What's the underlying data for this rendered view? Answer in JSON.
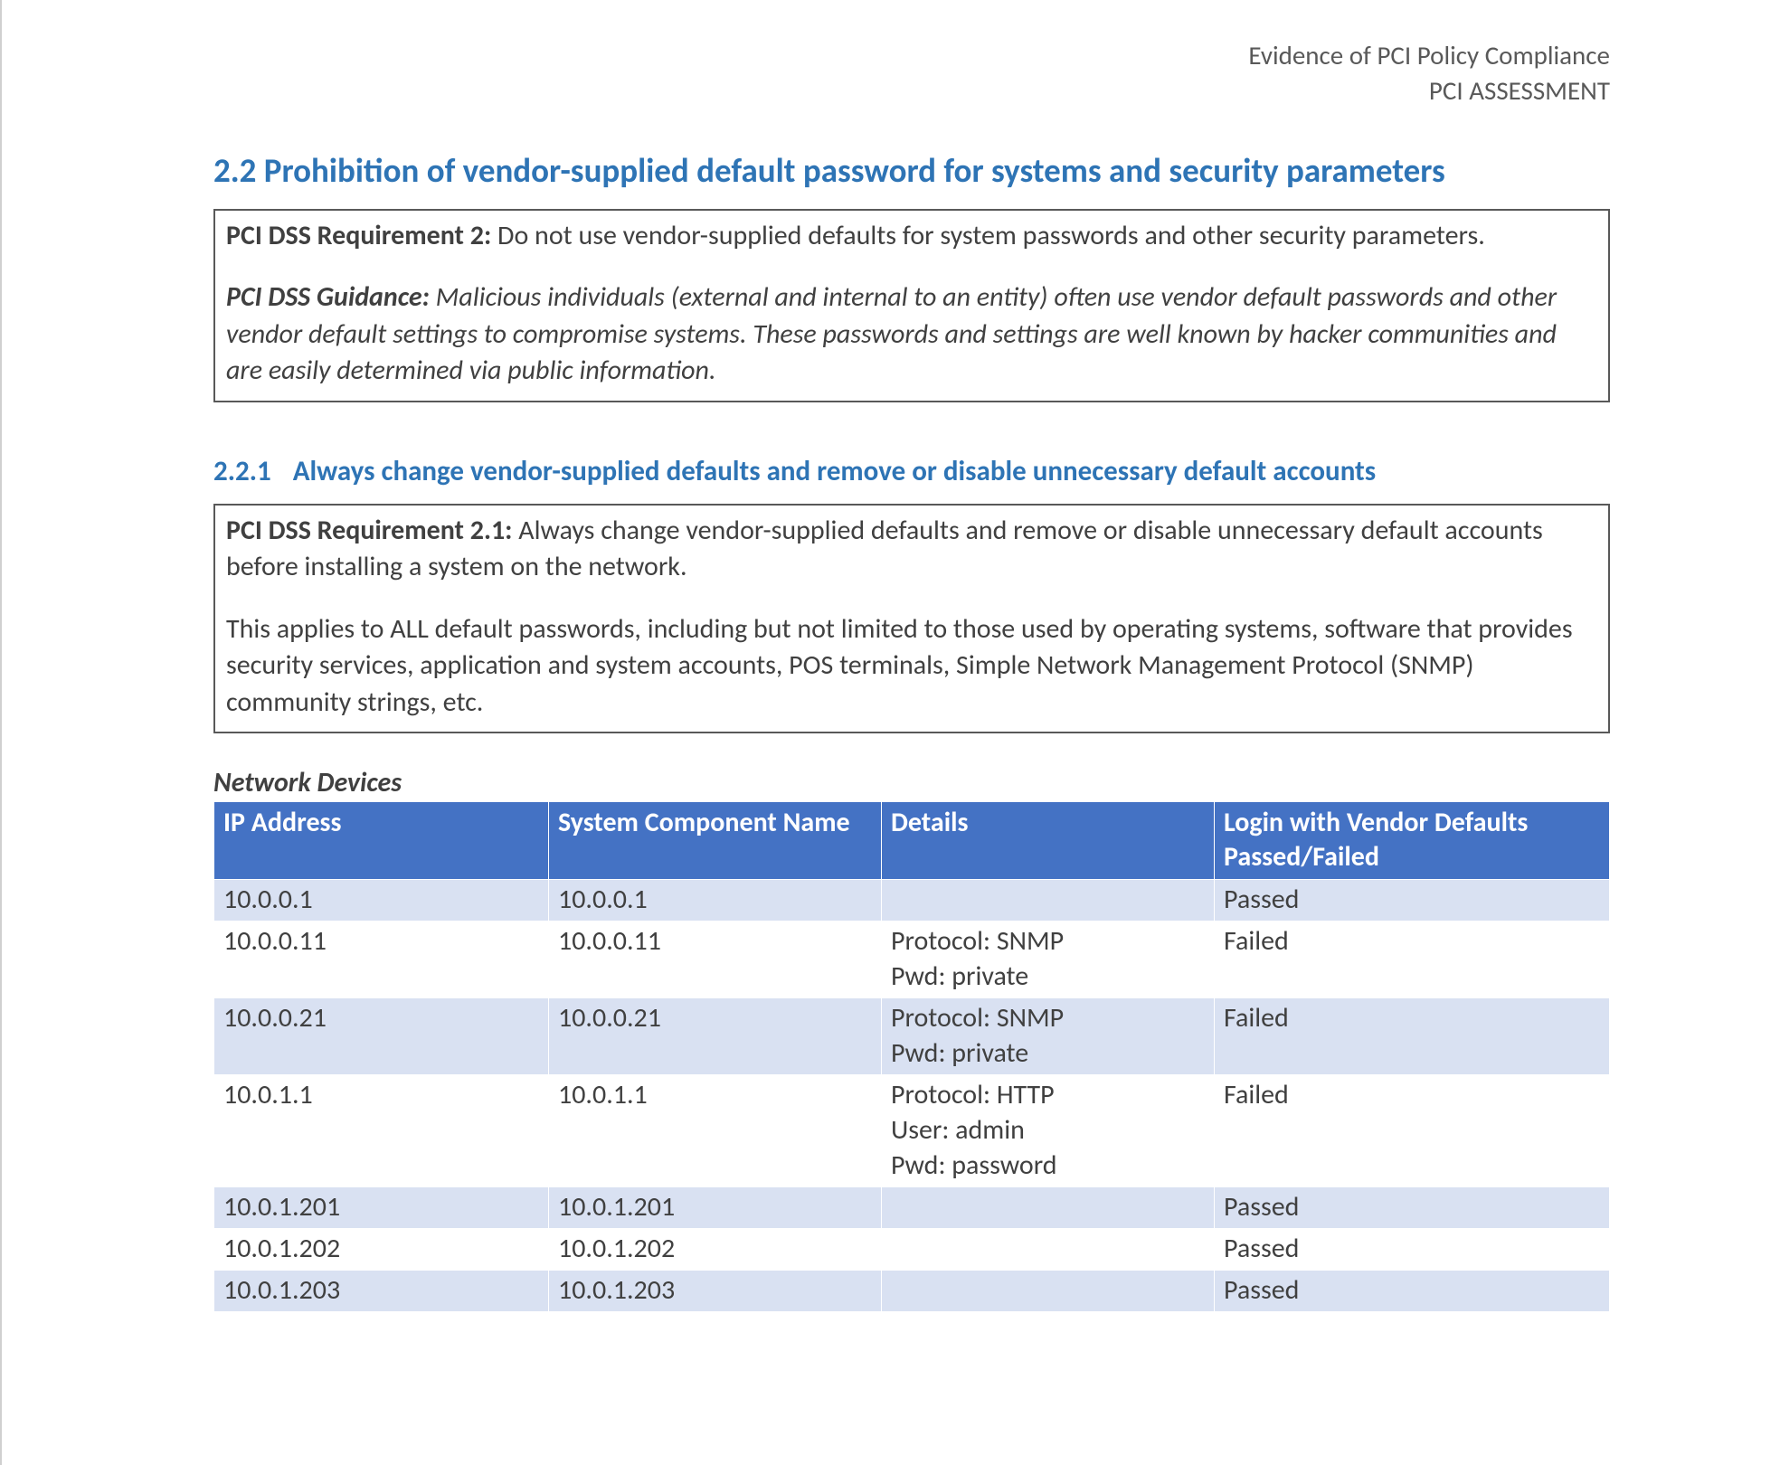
{
  "header": {
    "line1": "Evidence of PCI Policy Compliance",
    "line2": "PCI ASSESSMENT"
  },
  "section": {
    "title": "2.2 Prohibition of vendor-supplied default password for systems and security parameters",
    "box": {
      "req_label": "PCI DSS Requirement 2:",
      "req_text": " Do not use vendor-supplied defaults for system passwords and other security parameters.",
      "guid_label": "PCI DSS Guidance:",
      "guid_text": " Malicious individuals (external and internal to an entity) often use vendor default passwords and other vendor default settings to compromise systems. These passwords and settings are well known by hacker communities and are easily determined via public information."
    }
  },
  "subsection": {
    "number": "2.2.1",
    "title": "Always change vendor-supplied defaults and remove or disable unnecessary default accounts",
    "box": {
      "req_label": "PCI DSS Requirement 2.1:",
      "req_text": " Always change vendor-supplied defaults and remove or disable unnecessary default accounts before installing a system on the network.",
      "para2": "This applies to ALL default passwords, including but not limited to those used by operating systems, software that provides security services, application and system accounts, POS terminals, Simple Network Management Protocol (SNMP) community strings, etc."
    }
  },
  "table": {
    "title": "Network Devices",
    "header_bg": "#4472c4",
    "header_fg": "#ffffff",
    "band_light": "#d9e1f2",
    "band_white": "#ffffff",
    "failed_color": "#ff0000",
    "columns": [
      "IP Address",
      "System Component Name",
      "Details",
      "Login with Vendor Defaults Passed/Failed"
    ],
    "rows": [
      {
        "ip": "10.0.0.1",
        "comp": "10.0.0.1",
        "details": "",
        "status": "Passed",
        "band": "light"
      },
      {
        "ip": "10.0.0.11",
        "comp": "10.0.0.11",
        "details": "Protocol: SNMP\nPwd: private",
        "status": "Failed",
        "band": "white"
      },
      {
        "ip": "10.0.0.21",
        "comp": "10.0.0.21",
        "details": "Protocol: SNMP\nPwd: private",
        "status": "Failed",
        "band": "light"
      },
      {
        "ip": "10.0.1.1",
        "comp": "10.0.1.1",
        "details": "Protocol: HTTP\nUser: admin\nPwd: password",
        "status": "Failed",
        "band": "white"
      },
      {
        "ip": "10.0.1.201",
        "comp": "10.0.1.201",
        "details": "",
        "status": "Passed",
        "band": "light"
      },
      {
        "ip": "10.0.1.202",
        "comp": "10.0.1.202",
        "details": "",
        "status": "Passed",
        "band": "white"
      },
      {
        "ip": "10.0.1.203",
        "comp": "10.0.1.203",
        "details": "",
        "status": "Passed",
        "band": "light"
      }
    ]
  }
}
